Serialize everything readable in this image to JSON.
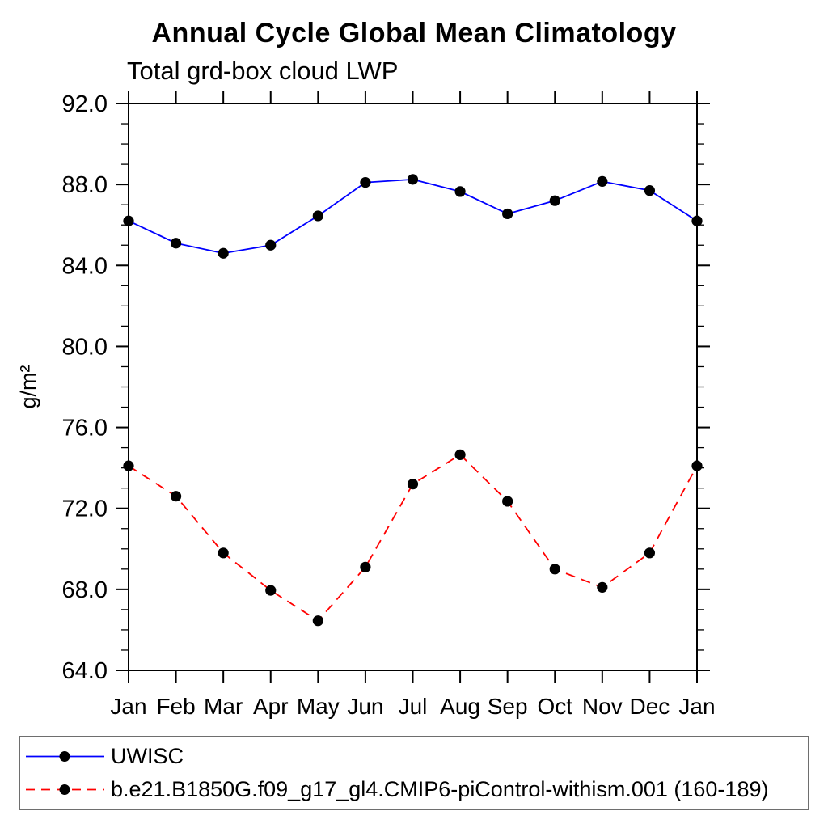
{
  "header": {
    "title": "Annual Cycle Global Mean Climatology",
    "subtitle": "Total grd-box cloud LWP"
  },
  "chart_data": {
    "type": "line",
    "title": "Annual Cycle Global Mean Climatology",
    "subtitle": "Total grd-box cloud LWP",
    "ylabel": "g/m²",
    "xlabel": "",
    "categories": [
      "Jan",
      "Feb",
      "Mar",
      "Apr",
      "May",
      "Jun",
      "Jul",
      "Aug",
      "Sep",
      "Oct",
      "Nov",
      "Dec",
      "Jan"
    ],
    "ylim": [
      64.0,
      92.0
    ],
    "y_major_step": 4,
    "y_minor_step": 1,
    "y_tick_labels": [
      "64.0",
      "68.0",
      "72.0",
      "76.0",
      "80.0",
      "84.0",
      "88.0",
      "92.0"
    ],
    "grid": false,
    "legend_position": "bottom",
    "series": [
      {
        "name": "UWISC",
        "line_color": "#0000ff",
        "line_style": "solid",
        "marker": "circle",
        "marker_color": "#000000",
        "values": [
          86.2,
          85.1,
          84.6,
          85.0,
          86.45,
          88.1,
          88.25,
          87.65,
          86.55,
          87.2,
          88.15,
          87.7,
          86.2
        ]
      },
      {
        "name": "b.e21.B1850G.f09_g17_gl4.CMIP6-piControl-withism.001 (160-189)",
        "line_color": "#ff0000",
        "line_style": "dashed",
        "marker": "circle",
        "marker_color": "#000000",
        "values": [
          74.1,
          72.6,
          69.8,
          67.95,
          66.45,
          69.1,
          73.2,
          74.65,
          72.35,
          69.0,
          68.1,
          69.8,
          74.1
        ]
      }
    ]
  }
}
